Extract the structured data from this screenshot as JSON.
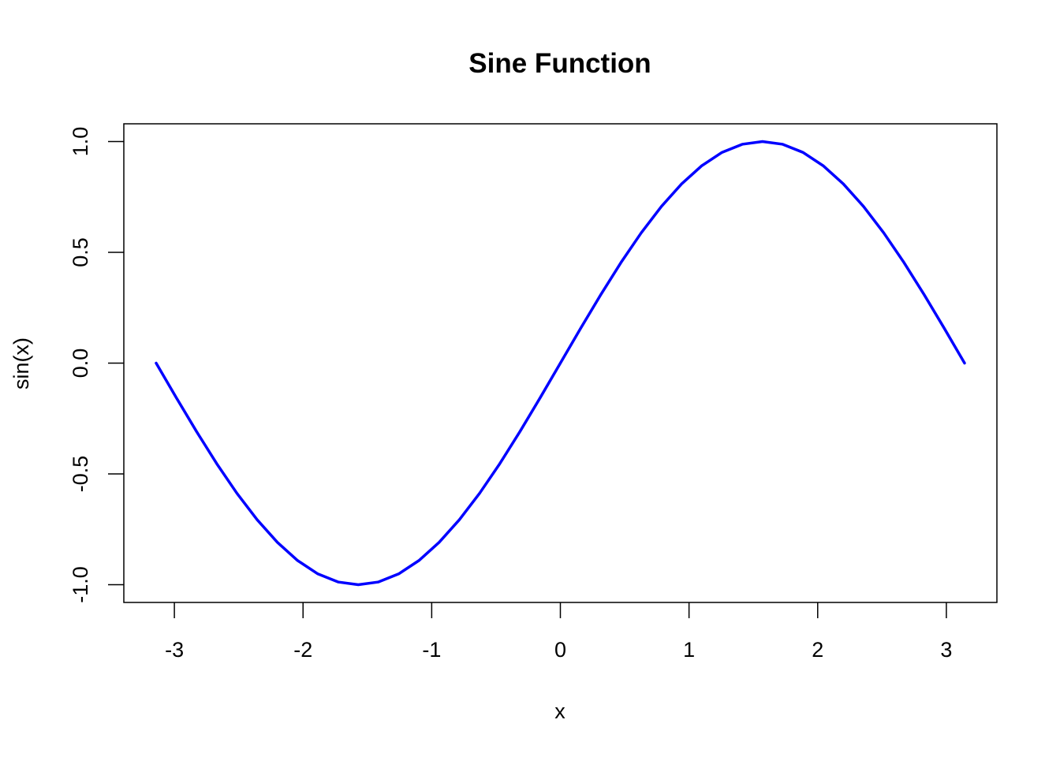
{
  "chart_data": {
    "type": "line",
    "title": "Sine Function",
    "xlabel": "x",
    "ylabel": "sin(x)",
    "xlim": [
      -3.3929,
      3.3929
    ],
    "ylim": [
      -1.08,
      1.08
    ],
    "xticks": [
      -3,
      -2,
      -1,
      0,
      1,
      2,
      3
    ],
    "xtick_labels": [
      "-3",
      "-2",
      "-1",
      "0",
      "1",
      "2",
      "3"
    ],
    "yticks": [
      -1.0,
      -0.5,
      0.0,
      0.5,
      1.0
    ],
    "ytick_labels": [
      "-1.0",
      "-0.5",
      "0.0",
      "0.5",
      "1.0"
    ],
    "grid": false,
    "series": [
      {
        "color": "#0000FF",
        "x": [
          -3.1416,
          -2.9845,
          -2.8274,
          -2.6704,
          -2.5133,
          -2.3562,
          -2.1991,
          -2.042,
          -1.885,
          -1.7279,
          -1.5708,
          -1.4137,
          -1.2566,
          -1.0996,
          -0.9425,
          -0.7854,
          -0.6283,
          -0.4712,
          -0.3142,
          -0.1571,
          0.0,
          0.1571,
          0.3142,
          0.4712,
          0.6283,
          0.7854,
          0.9425,
          1.0996,
          1.2566,
          1.4137,
          1.5708,
          1.7279,
          1.885,
          2.042,
          2.1991,
          2.3562,
          2.5133,
          2.6704,
          2.8274,
          2.9845,
          3.1416
        ],
        "values": [
          0.0,
          -0.1564,
          -0.309,
          -0.454,
          -0.5878,
          -0.7071,
          -0.809,
          -0.891,
          -0.9511,
          -0.9877,
          -1.0,
          -0.9877,
          -0.9511,
          -0.891,
          -0.809,
          -0.7071,
          -0.5878,
          -0.454,
          -0.309,
          -0.1564,
          0.0,
          0.1564,
          0.309,
          0.454,
          0.5878,
          0.7071,
          0.809,
          0.891,
          0.9511,
          0.9877,
          1.0,
          0.9877,
          0.9511,
          0.891,
          0.809,
          0.7071,
          0.5878,
          0.454,
          0.309,
          0.1564,
          0.0
        ]
      }
    ]
  }
}
